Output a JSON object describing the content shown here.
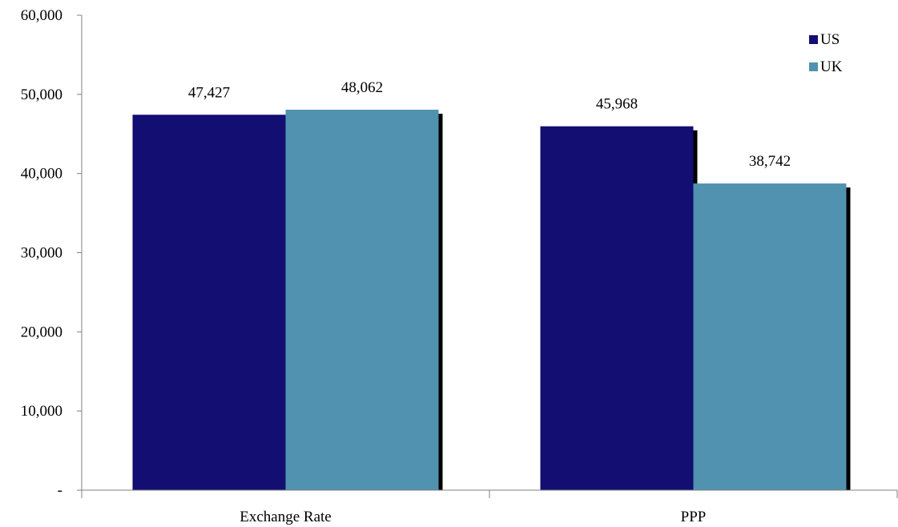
{
  "chart_data": {
    "type": "bar",
    "title": "",
    "xlabel": "",
    "ylabel": "",
    "categories": [
      "Exchange Rate",
      "PPP"
    ],
    "series": [
      {
        "name": "US",
        "color": "#120e72",
        "values": [
          47427,
          45968
        ],
        "labels": [
          "47,427",
          "45,968"
        ]
      },
      {
        "name": "UK",
        "color": "#5092b0",
        "values": [
          48062,
          38742
        ],
        "labels": [
          "48,062",
          "38,742"
        ]
      }
    ],
    "ylim": [
      0,
      60000
    ],
    "yticks": [
      0,
      10000,
      20000,
      30000,
      40000,
      50000,
      60000
    ],
    "ytick_labels": [
      "-",
      "10,000",
      "20,000",
      "30,000",
      "40,000",
      "50,000",
      "60,000"
    ],
    "grid": false,
    "legend": "top-right",
    "shadow_color": "#000000"
  }
}
